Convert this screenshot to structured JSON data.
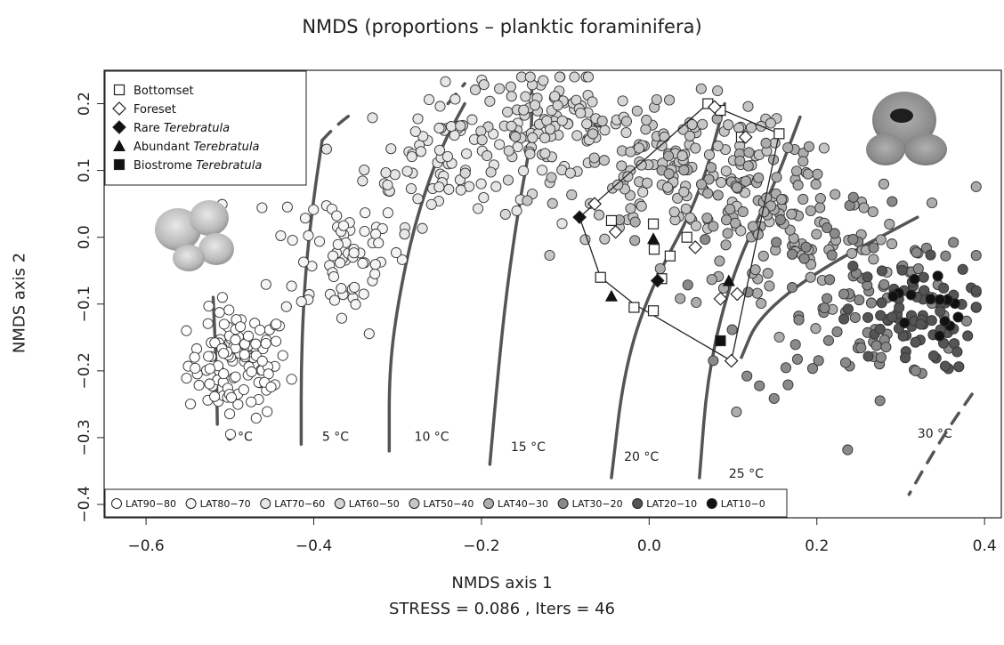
{
  "chart_data": {
    "type": "scatter",
    "title": "NMDS (proportions – planktic foraminifera)",
    "xlabel": "NMDS axis 1",
    "xlabel_sub": "STRESS = 0.086 ,  Iters = 46",
    "ylabel": "NMDS axis 2",
    "xlim": [
      -0.65,
      0.42
    ],
    "ylim": [
      -0.42,
      0.25
    ],
    "xticks": [
      -0.6,
      -0.4,
      -0.2,
      0.0,
      0.2,
      0.4
    ],
    "xtick_labels": [
      "−0.6",
      "−0.4",
      "−0.2",
      "0.0",
      "0.2",
      "0.4"
    ],
    "yticks": [
      -0.4,
      -0.3,
      -0.2,
      -0.1,
      0.0,
      0.1,
      0.2
    ],
    "ytick_labels": [
      "−0.4",
      "−0.3",
      "−0.2",
      "−0.1",
      "0.0",
      "0.1",
      "0.2"
    ],
    "grid": false,
    "legend_top": {
      "placement": "top-left",
      "entries": [
        {
          "symbol": "open-square",
          "text": "Bottomset",
          "italic": ""
        },
        {
          "symbol": "open-diamond",
          "text": "Foreset",
          "italic": ""
        },
        {
          "symbol": "filled-diamond",
          "text": "Rare ",
          "italic": "Terebratula"
        },
        {
          "symbol": "filled-triangle",
          "text": "Abundant ",
          "italic": "Terebratula"
        },
        {
          "symbol": "filled-square",
          "text": "Biostrome ",
          "italic": "Terebratula"
        }
      ]
    },
    "legend_bottom": {
      "placement": "bottom-left",
      "entries": [
        {
          "label": "LAT90−80",
          "color": "#ffffff"
        },
        {
          "label": "LAT80−70",
          "color": "#f4f4f4"
        },
        {
          "label": "LAT70−60",
          "color": "#e6e6e6"
        },
        {
          "label": "LAT60−50",
          "color": "#d6d6d6"
        },
        {
          "label": "LAT50−40",
          "color": "#c6c6c6"
        },
        {
          "label": "LAT40−30",
          "color": "#adadad"
        },
        {
          "label": "LAT30−20",
          "color": "#8a8a8a"
        },
        {
          "label": "LAT20−10",
          "color": "#555555"
        },
        {
          "label": "LAT10−0",
          "color": "#111111"
        }
      ]
    },
    "isotherms": [
      {
        "label": "0 °C",
        "points": [
          [
            -0.52,
            -0.09
          ],
          [
            -0.516,
            -0.2
          ],
          [
            -0.515,
            -0.28
          ]
        ],
        "label_at": [
          -0.505,
          -0.305
        ],
        "dashed": false
      },
      {
        "label": "5 °C",
        "points": [
          [
            -0.39,
            0.145
          ],
          [
            -0.4,
            0.06
          ],
          [
            -0.41,
            -0.05
          ],
          [
            -0.415,
            -0.18
          ],
          [
            -0.415,
            -0.31
          ]
        ],
        "label_at": [
          -0.39,
          -0.305
        ],
        "dashed": false
      },
      {
        "label": "10 °C",
        "points": [
          [
            -0.22,
            0.2
          ],
          [
            -0.25,
            0.13
          ],
          [
            -0.28,
            0.02
          ],
          [
            -0.3,
            -0.1
          ],
          [
            -0.31,
            -0.2
          ],
          [
            -0.31,
            -0.32
          ]
        ],
        "label_at": [
          -0.28,
          -0.305
        ],
        "dashed": false
      },
      {
        "label": "15 °C",
        "points": [
          [
            -0.14,
            0.22
          ],
          [
            -0.14,
            0.15
          ],
          [
            -0.155,
            0.05
          ],
          [
            -0.17,
            -0.08
          ],
          [
            -0.18,
            -0.2
          ],
          [
            -0.19,
            -0.34
          ]
        ],
        "label_at": [
          -0.165,
          -0.32
        ],
        "dashed": false
      },
      {
        "label": "20 °C",
        "points": [
          [
            0.09,
            0.2
          ],
          [
            0.06,
            0.06
          ],
          [
            0.0,
            -0.08
          ],
          [
            -0.03,
            -0.2
          ],
          [
            -0.045,
            -0.36
          ]
        ],
        "label_at": [
          -0.03,
          -0.335
        ],
        "dashed": false
      },
      {
        "label": "25 °C",
        "points": [
          [
            0.18,
            0.18
          ],
          [
            0.15,
            0.08
          ],
          [
            0.1,
            -0.05
          ],
          [
            0.07,
            -0.2
          ],
          [
            0.06,
            -0.36
          ]
        ],
        "label_at": [
          0.095,
          -0.36
        ],
        "dashed": false
      },
      {
        "label": "30 °C",
        "points": [
          [
            0.32,
            0.03
          ],
          [
            0.2,
            -0.05
          ],
          [
            0.13,
            -0.12
          ],
          [
            0.11,
            -0.18
          ]
        ],
        "label_at": [
          0.32,
          -0.3
        ],
        "dashed": false
      },
      {
        "label": "",
        "points": [
          [
            0.385,
            -0.235
          ],
          [
            0.36,
            -0.28
          ],
          [
            0.335,
            -0.33
          ],
          [
            0.31,
            -0.385
          ]
        ],
        "label_at": null,
        "dashed": true
      },
      {
        "label": "",
        "points": [
          [
            -0.39,
            0.145
          ],
          [
            -0.375,
            0.165
          ],
          [
            -0.355,
            0.185
          ]
        ],
        "label_at": null,
        "dashed": true
      },
      {
        "label": "",
        "points": [
          [
            -0.24,
            0.2
          ],
          [
            -0.22,
            0.23
          ]
        ],
        "label_at": null,
        "dashed": true
      }
    ],
    "series": [
      {
        "name": "LAT90−80",
        "cluster": {
          "cx": -0.49,
          "cy": -0.19,
          "sx": 0.03,
          "sy": 0.04,
          "n": 110
        }
      },
      {
        "name": "LAT80−70",
        "cluster": {
          "cx": -0.37,
          "cy": -0.02,
          "sx": 0.04,
          "sy": 0.06,
          "n": 70
        }
      },
      {
        "name": "LAT70−60",
        "cluster": {
          "cx": -0.24,
          "cy": 0.12,
          "sx": 0.05,
          "sy": 0.05,
          "n": 80
        }
      },
      {
        "name": "LAT60−50",
        "cluster": {
          "cx": -0.12,
          "cy": 0.17,
          "sx": 0.05,
          "sy": 0.04,
          "n": 110
        }
      },
      {
        "name": "LAT50−40",
        "cluster": {
          "cx": 0.04,
          "cy": 0.1,
          "sx": 0.07,
          "sy": 0.05,
          "n": 140
        }
      },
      {
        "name": "LAT40−30",
        "cluster": {
          "cx": 0.15,
          "cy": 0.02,
          "sx": 0.08,
          "sy": 0.07,
          "n": 140
        }
      },
      {
        "name": "LAT30−20",
        "cluster": {
          "cx": 0.25,
          "cy": -0.09,
          "sx": 0.07,
          "sy": 0.08,
          "n": 90
        }
      },
      {
        "name": "LAT20−10",
        "cluster": {
          "cx": 0.31,
          "cy": -0.12,
          "sx": 0.04,
          "sy": 0.04,
          "n": 70
        }
      },
      {
        "name": "LAT10−0",
        "cluster": {
          "cx": 0.33,
          "cy": -0.1,
          "sx": 0.02,
          "sy": 0.03,
          "n": 14
        }
      }
    ],
    "fossil_samples": {
      "polygon": [
        [
          -0.058,
          -0.06
        ],
        [
          -0.083,
          0.03
        ],
        [
          0.07,
          0.2
        ],
        [
          0.155,
          0.155
        ],
        [
          0.098,
          -0.185
        ],
        [
          -0.018,
          -0.1
        ]
      ],
      "bottomset": [
        [
          -0.058,
          -0.06
        ],
        [
          -0.045,
          0.025
        ],
        [
          0.005,
          0.02
        ],
        [
          0.006,
          -0.018
        ],
        [
          0.025,
          -0.028
        ],
        [
          0.045,
          0.0
        ],
        [
          0.07,
          0.2
        ],
        [
          0.085,
          0.19
        ],
        [
          0.155,
          0.155
        ],
        [
          0.11,
          0.15
        ],
        [
          -0.018,
          -0.105
        ],
        [
          0.005,
          -0.11
        ],
        [
          0.015,
          -0.062
        ]
      ],
      "foreset": [
        [
          -0.065,
          0.05
        ],
        [
          -0.04,
          0.008
        ],
        [
          0.055,
          -0.015
        ],
        [
          0.078,
          0.195
        ],
        [
          0.115,
          0.15
        ],
        [
          0.085,
          -0.092
        ],
        [
          0.105,
          -0.085
        ],
        [
          0.098,
          -0.185
        ]
      ],
      "rare": [
        [
          -0.083,
          0.03
        ],
        [
          0.01,
          -0.065
        ]
      ],
      "abundant": [
        [
          -0.045,
          -0.088
        ],
        [
          0.005,
          -0.002
        ],
        [
          0.095,
          -0.065
        ]
      ],
      "biostrome": [
        [
          0.085,
          -0.155
        ]
      ]
    }
  }
}
